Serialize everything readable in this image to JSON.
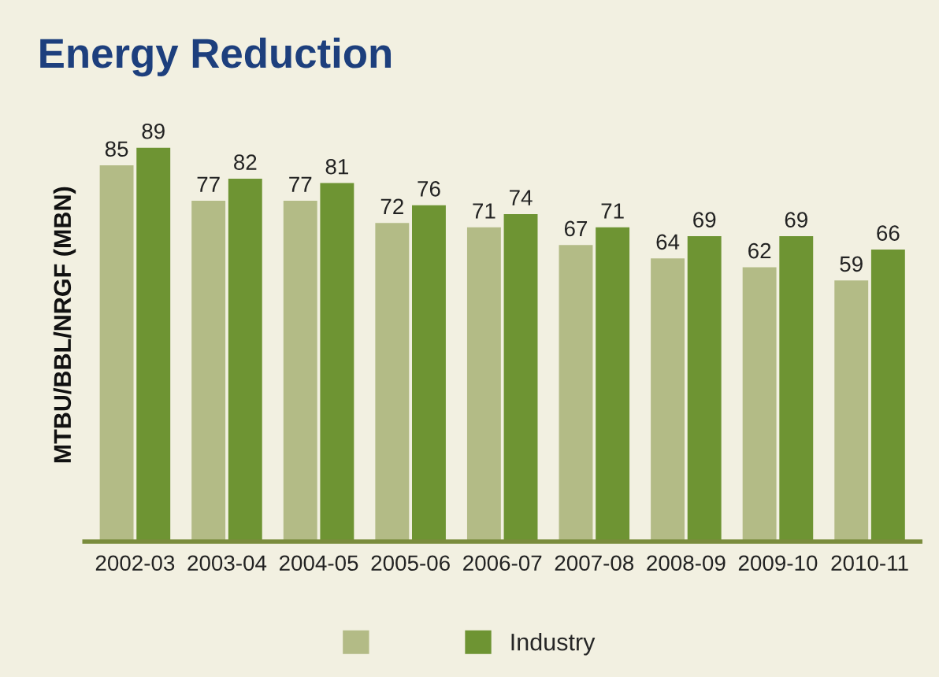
{
  "chart_data": {
    "type": "bar",
    "title": "Energy Reduction",
    "ylabel": "MTBU/BBL/NRGF (MBN)",
    "categories": [
      "2002-03",
      "2003-04",
      "2004-05",
      "2005-06",
      "2006-07",
      "2007-08",
      "2008-09",
      "2009-10",
      "2010-11"
    ],
    "series": [
      {
        "color": "#b3bb86",
        "values": [
          85,
          77,
          77,
          72,
          71,
          67,
          64,
          62,
          59
        ]
      },
      {
        "name": "Industry",
        "color": "#6e9433",
        "values": [
          89,
          82,
          81,
          76,
          74,
          71,
          69,
          69,
          66
        ]
      }
    ],
    "data_labels": true,
    "legend": "bottom",
    "grid": false
  }
}
